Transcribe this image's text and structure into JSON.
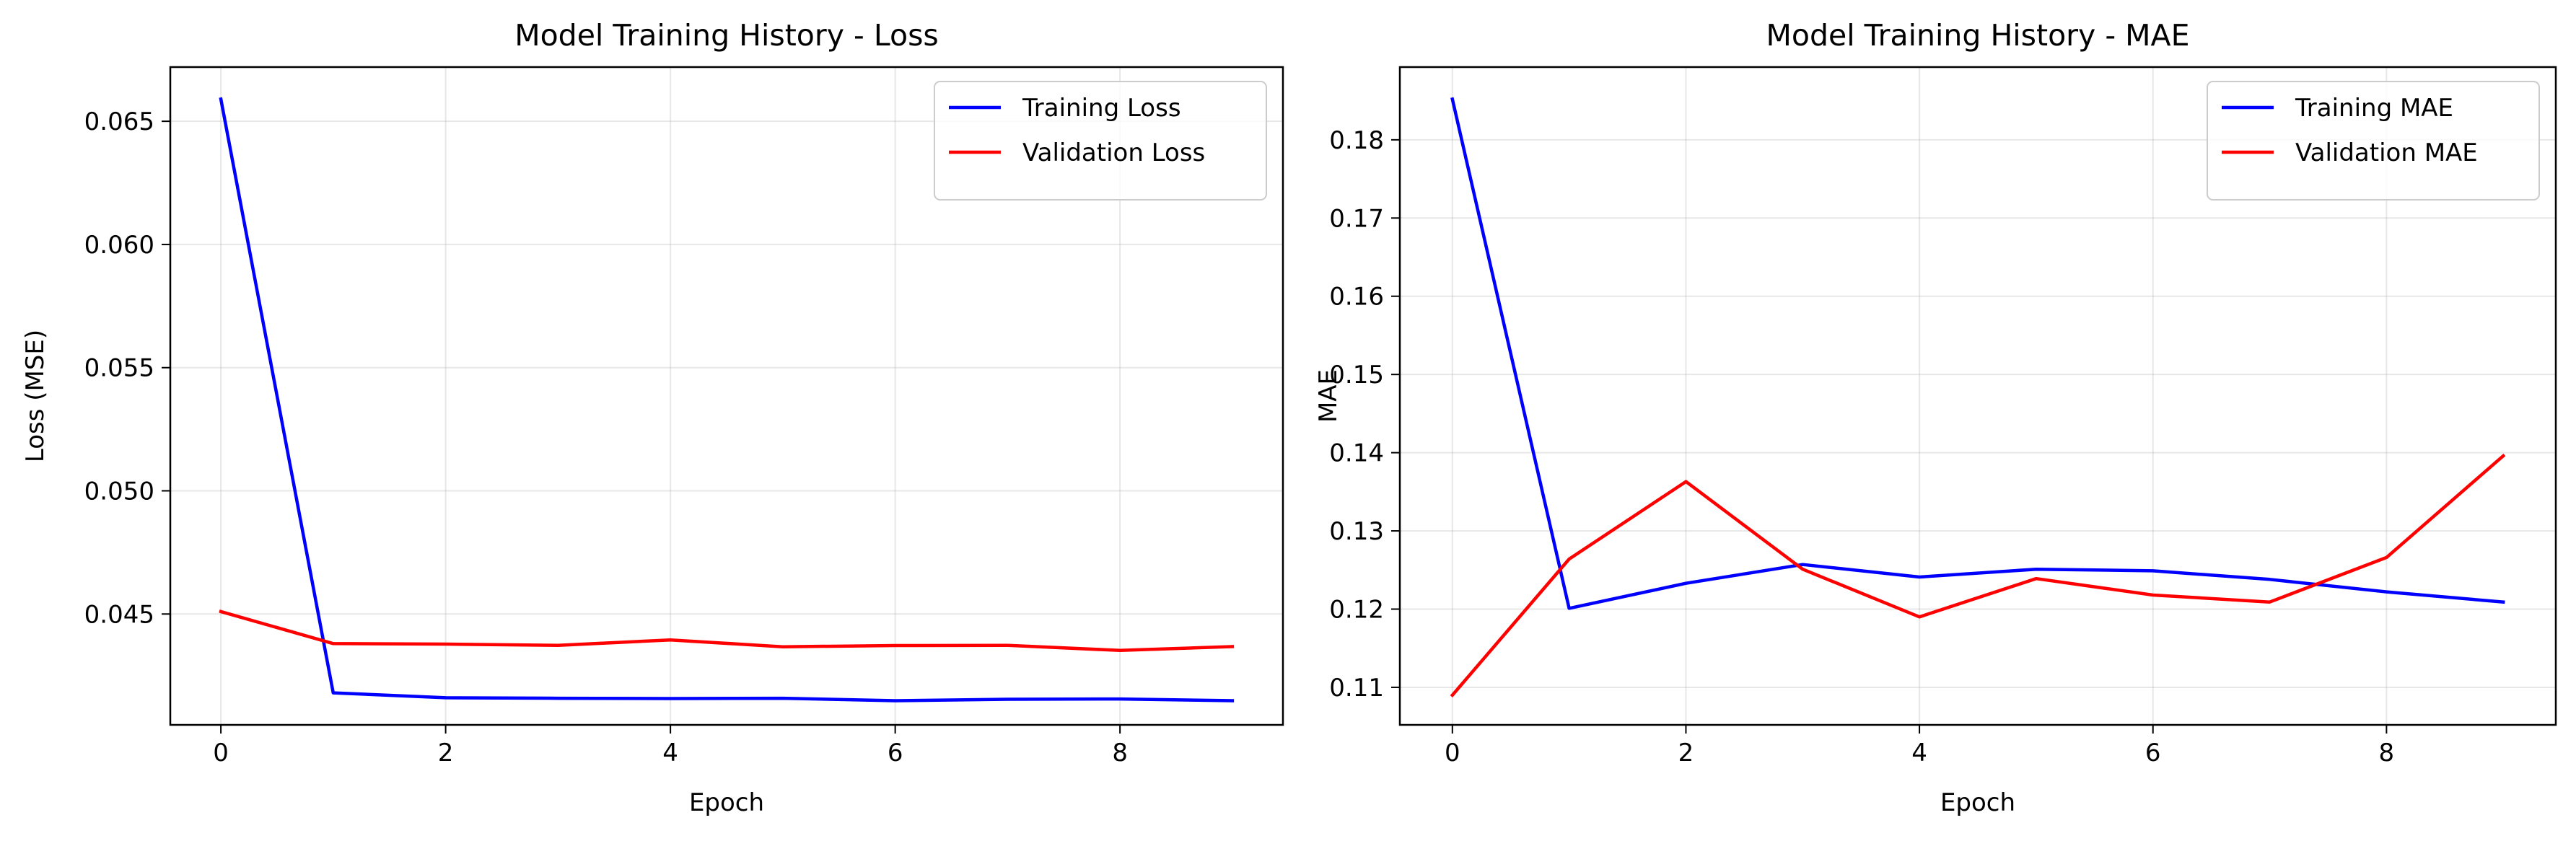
{
  "chart_data": [
    {
      "type": "line",
      "title": "Model Training History - Loss",
      "xlabel": "Epoch",
      "ylabel": "Loss (MSE)",
      "x": [
        0,
        1,
        2,
        3,
        4,
        5,
        6,
        7,
        8,
        9
      ],
      "xlim": [
        -0.45,
        9.45
      ],
      "ylim": [
        0.0405,
        0.0672
      ],
      "xticks": [
        0,
        2,
        4,
        6,
        8
      ],
      "yticks": [
        0.045,
        0.05,
        0.055,
        0.06,
        0.065
      ],
      "xtick_labels": [
        "0",
        "2",
        "4",
        "6",
        "8"
      ],
      "ytick_labels": [
        "0.045",
        "0.050",
        "0.055",
        "0.060",
        "0.065"
      ],
      "grid": true,
      "legend_position": "upper right",
      "series": [
        {
          "name": "Training Loss",
          "color": "#0000ff",
          "values": [
            0.0659,
            0.0418,
            0.0416,
            0.04158,
            0.04157,
            0.04158,
            0.04148,
            0.04154,
            0.04155,
            0.04148
          ]
        },
        {
          "name": "Validation Loss",
          "color": "#ff0000",
          "values": [
            0.0451,
            0.0438,
            0.04378,
            0.04373,
            0.04395,
            0.04367,
            0.04372,
            0.04373,
            0.04352,
            0.04368
          ]
        }
      ]
    },
    {
      "type": "line",
      "title": "Model Training History - MAE",
      "xlabel": "Epoch",
      "ylabel": "MAE",
      "x": [
        0,
        1,
        2,
        3,
        4,
        5,
        6,
        7,
        8,
        9
      ],
      "xlim": [
        -0.45,
        9.45
      ],
      "ylim": [
        0.1052,
        0.1893
      ],
      "xticks": [
        0,
        2,
        4,
        6,
        8
      ],
      "yticks": [
        0.11,
        0.12,
        0.13,
        0.14,
        0.15,
        0.16,
        0.17,
        0.18
      ],
      "xtick_labels": [
        "0",
        "2",
        "4",
        "6",
        "8"
      ],
      "ytick_labels": [
        "0.11",
        "0.12",
        "0.13",
        "0.14",
        "0.15",
        "0.16",
        "0.17",
        "0.18"
      ],
      "grid": true,
      "legend_position": "upper right",
      "series": [
        {
          "name": "Training MAE",
          "color": "#0000ff",
          "values": [
            0.1852,
            0.1201,
            0.1233,
            0.1257,
            0.1241,
            0.1251,
            0.1249,
            0.1238,
            0.1222,
            0.1209
          ]
        },
        {
          "name": "Validation MAE",
          "color": "#ff0000",
          "values": [
            0.109,
            0.1264,
            0.1363,
            0.1251,
            0.119,
            0.1239,
            0.1218,
            0.1209,
            0.1266,
            0.1396
          ]
        }
      ]
    }
  ]
}
